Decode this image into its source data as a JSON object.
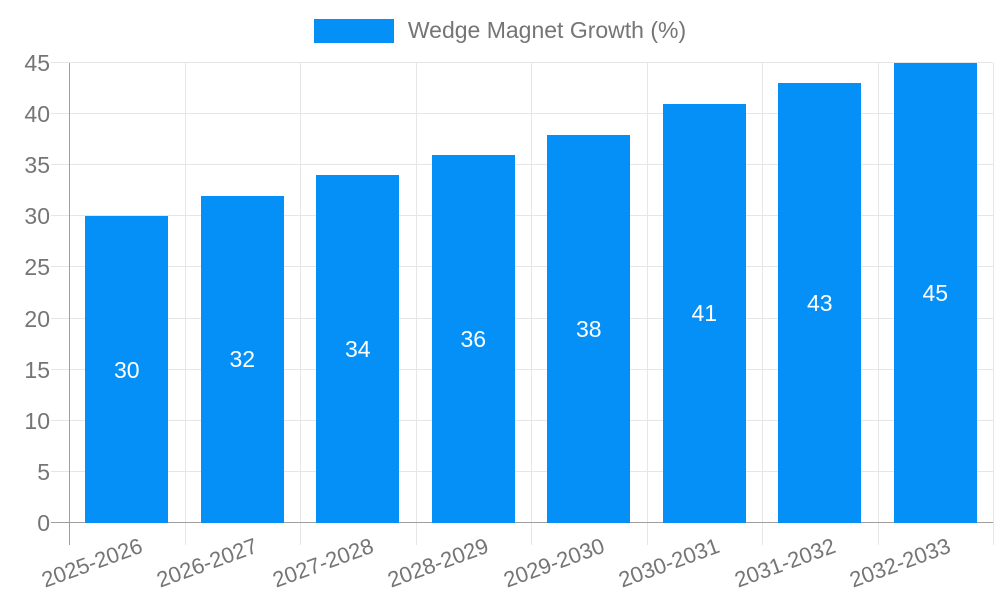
{
  "legend": {
    "label": "Wedge Magnet Growth (%)"
  },
  "colors": {
    "bar": "#0590f8",
    "grid": "#e6e6e6",
    "axis": "#9e9e9e",
    "tick_text": "#757575",
    "bar_label_text": "#ffffff",
    "background": "#ffffff"
  },
  "chart_data": {
    "type": "bar",
    "title": "",
    "xlabel": "",
    "ylabel": "",
    "categories": [
      "2025-2026",
      "2026-2027",
      "2027-2028",
      "2028-2029",
      "2029-2030",
      "2030-2031",
      "2031-2032",
      "2032-2033"
    ],
    "series": [
      {
        "name": "Wedge Magnet Growth (%)",
        "values": [
          30,
          32,
          34,
          36,
          38,
          41,
          43,
          45
        ]
      }
    ],
    "bar_value_labels": [
      "30",
      "32",
      "34",
      "36",
      "38",
      "41",
      "43",
      "45"
    ],
    "ylim": [
      0,
      45
    ],
    "yticks": [
      0,
      5,
      10,
      15,
      20,
      25,
      30,
      35,
      40,
      45
    ],
    "grid": true,
    "legend_position": "top-center",
    "x_label_rotation_deg": -20
  }
}
